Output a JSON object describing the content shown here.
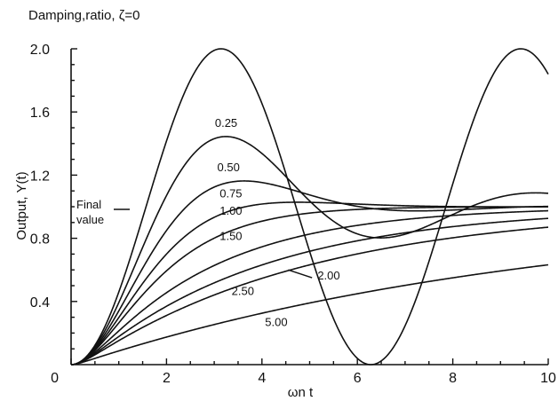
{
  "chart_data": {
    "type": "line",
    "title": "Damping,ratio, ζ=0",
    "xlabel": "ωn t",
    "ylabel": "Output, Y(t)",
    "xlim": [
      0,
      10
    ],
    "ylim": [
      0,
      2.0
    ],
    "xticks": [
      0,
      2,
      4,
      6,
      8,
      10
    ],
    "yticks": [
      0.4,
      0.8,
      1.2,
      1.6,
      2.0
    ],
    "origin_label": "0",
    "grid": false,
    "final_value": 1.0,
    "final_value_label": [
      "Final",
      "value"
    ],
    "series": [
      {
        "label": "",
        "zeta": 0.0
      },
      {
        "label": "0.25",
        "zeta": 0.25
      },
      {
        "label": "0.50",
        "zeta": 0.5
      },
      {
        "label": "0.75",
        "zeta": 0.75
      },
      {
        "label": "1.00",
        "zeta": 1.0
      },
      {
        "label": "1.50",
        "zeta": 1.5
      },
      {
        "label": "2.00",
        "zeta": 2.0
      },
      {
        "label": "2.50",
        "zeta": 2.5
      },
      {
        "label": "5.00",
        "zeta": 5.0
      }
    ]
  }
}
